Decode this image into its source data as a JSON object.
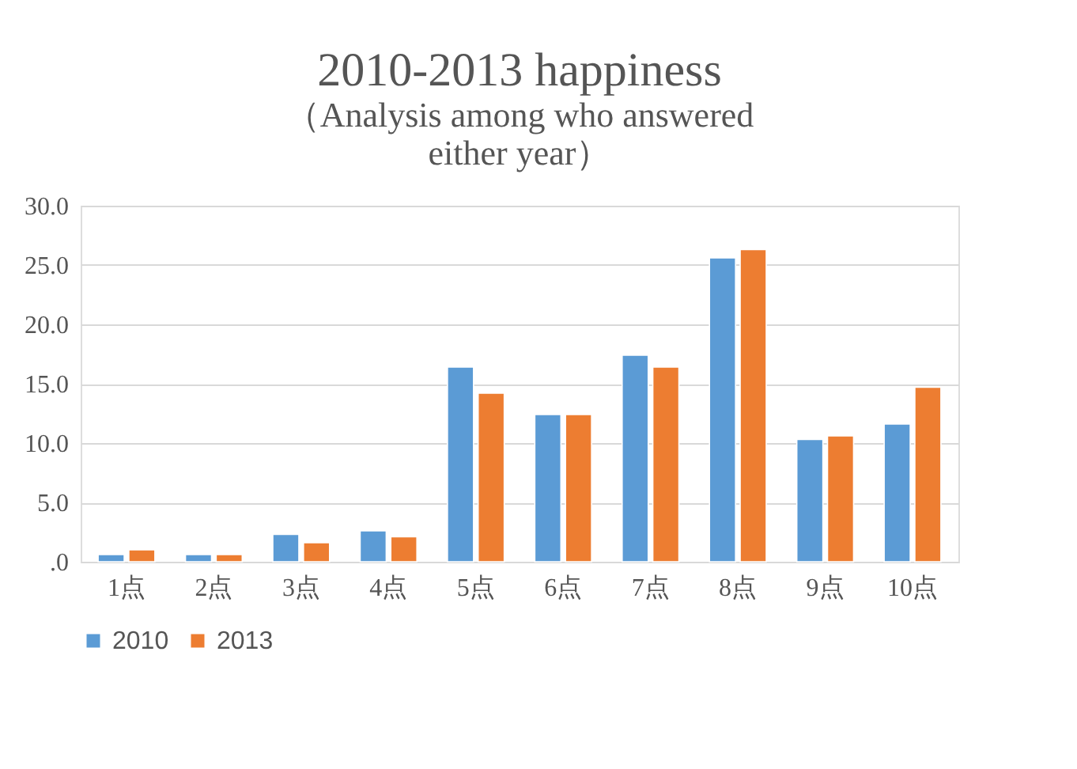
{
  "chart_data": {
    "type": "bar",
    "title": "2010-2013 happiness",
    "subtitle": "（Analysis among who answered either year）",
    "categories": [
      "1点",
      "2点",
      "3点",
      "4点",
      "5点",
      "6点",
      "7点",
      "8点",
      "9点",
      "10点"
    ],
    "series": [
      {
        "name": "2010",
        "color": "#5b9bd5",
        "values": [
          0.6,
          0.6,
          2.3,
          2.6,
          16.4,
          12.4,
          17.4,
          25.6,
          10.3,
          11.6
        ]
      },
      {
        "name": "2013",
        "color": "#ed7d31",
        "values": [
          1.0,
          0.6,
          1.6,
          2.1,
          14.2,
          12.4,
          16.4,
          26.3,
          10.6,
          14.7
        ]
      }
    ],
    "ylim": [
      0,
      30
    ],
    "yticks": [
      {
        "value": 0,
        "label": ".0"
      },
      {
        "value": 5,
        "label": "5.0"
      },
      {
        "value": 10,
        "label": "10.0"
      },
      {
        "value": 15,
        "label": "15.0"
      },
      {
        "value": 20,
        "label": "20.0"
      },
      {
        "value": 25,
        "label": "25.0"
      },
      {
        "value": 30,
        "label": "30.0"
      }
    ],
    "grid": "y",
    "legend": "bottom"
  }
}
